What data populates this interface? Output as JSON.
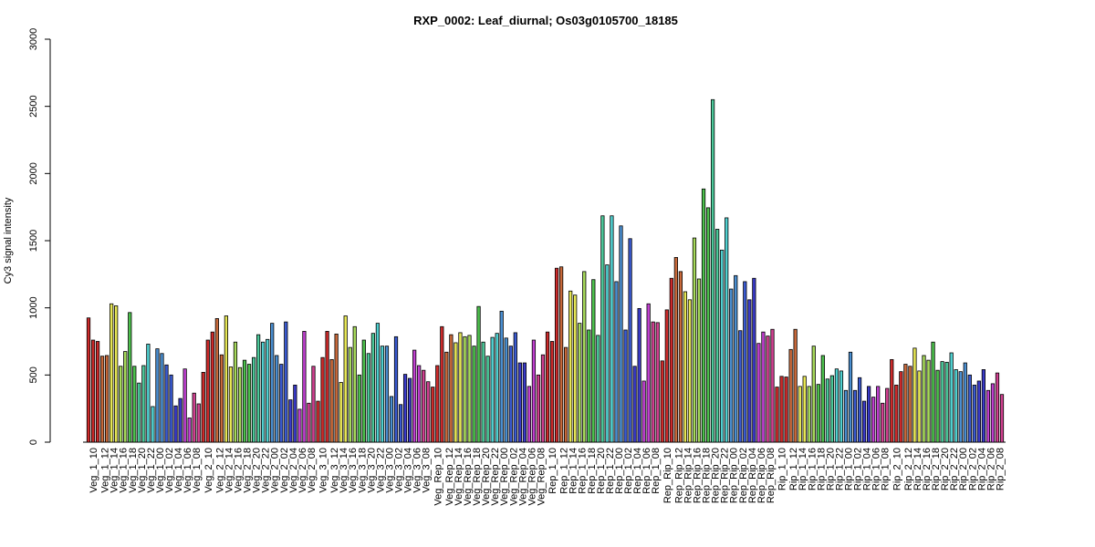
{
  "chart_data": {
    "type": "bar",
    "title": "RXP_0002: Leaf_diurnal; Os03g0105700_18185",
    "xlabel": "",
    "ylabel": "Cy3 signal intensity",
    "ylim": [
      0,
      3000
    ],
    "yticks": [
      0,
      500,
      1000,
      1500,
      2000,
      2500,
      3000
    ],
    "grid": false,
    "legend": "none",
    "groups": [
      {
        "label": "Veg_1_10",
        "color": "#cc2a2a",
        "values": [
          925,
          760,
          750
        ]
      },
      {
        "label": "Veg_1_12",
        "color": "#c8693a",
        "values": [
          640,
          645
        ]
      },
      {
        "label": "Veg_1_14",
        "color": "#e6e654",
        "values": [
          1030,
          1015
        ]
      },
      {
        "label": "Veg_1_16",
        "color": "#a6d95a",
        "values": [
          565,
          675
        ]
      },
      {
        "label": "Veg_1_18",
        "color": "#4cc04c",
        "values": [
          965,
          565
        ]
      },
      {
        "label": "Veg_1_20",
        "color": "#4cc89a",
        "values": [
          440,
          570
        ]
      },
      {
        "label": "Veg_1_22",
        "color": "#50d0d0",
        "values": [
          730,
          265
        ]
      },
      {
        "label": "Veg_1_00",
        "color": "#4a8ed0",
        "values": [
          695,
          660
        ]
      },
      {
        "label": "Veg_1_02",
        "color": "#3a5ad0",
        "values": [
          575,
          500
        ]
      },
      {
        "label": "Veg_1_04",
        "color": "#3a3ac8",
        "values": [
          270,
          325
        ]
      },
      {
        "label": "Veg_1_06",
        "color": "#c040d0",
        "values": [
          545,
          180
        ]
      },
      {
        "label": "Veg_1_08",
        "color": "#d04090",
        "values": [
          365,
          285
        ]
      },
      {
        "label": "Veg_2_10",
        "color": "#cc2a2a",
        "values": [
          520,
          760,
          820
        ]
      },
      {
        "label": "Veg_2_12",
        "color": "#c8693a",
        "values": [
          920,
          650
        ]
      },
      {
        "label": "Veg_2_14",
        "color": "#e6e654",
        "values": [
          940,
          560
        ]
      },
      {
        "label": "Veg_2_16",
        "color": "#a6d95a",
        "values": [
          745,
          555
        ]
      },
      {
        "label": "Veg_2_18",
        "color": "#4cc04c",
        "values": [
          610,
          580
        ]
      },
      {
        "label": "Veg_2_20",
        "color": "#4cc89a",
        "values": [
          630,
          800
        ]
      },
      {
        "label": "Veg_2_22",
        "color": "#50d0d0",
        "values": [
          745,
          765
        ]
      },
      {
        "label": "Veg_2_00",
        "color": "#4a8ed0",
        "values": [
          885,
          645
        ]
      },
      {
        "label": "Veg_2_02",
        "color": "#3a5ad0",
        "values": [
          580,
          895
        ]
      },
      {
        "label": "Veg_2_04",
        "color": "#3a3ac8",
        "values": [
          315,
          425
        ]
      },
      {
        "label": "Veg_2_06",
        "color": "#c040d0",
        "values": [
          245,
          825
        ]
      },
      {
        "label": "Veg_2_08",
        "color": "#d04090",
        "values": [
          290,
          565
        ]
      },
      {
        "label": "Veg_3_10",
        "color": "#cc2a2a",
        "values": [
          305,
          630,
          825
        ]
      },
      {
        "label": "Veg_3_12",
        "color": "#c8693a",
        "values": [
          615,
          805
        ]
      },
      {
        "label": "Veg_3_14",
        "color": "#e6e654",
        "values": [
          445,
          940
        ]
      },
      {
        "label": "Veg_3_16",
        "color": "#a6d95a",
        "values": [
          705,
          860
        ]
      },
      {
        "label": "Veg_3_18",
        "color": "#4cc04c",
        "values": [
          500,
          760
        ]
      },
      {
        "label": "Veg_3_20",
        "color": "#4cc89a",
        "values": [
          660,
          810
        ]
      },
      {
        "label": "Veg_3_22",
        "color": "#50d0d0",
        "values": [
          885,
          715
        ]
      },
      {
        "label": "Veg_3_00",
        "color": "#4a8ed0",
        "values": [
          715,
          340
        ]
      },
      {
        "label": "Veg_3_02",
        "color": "#3a5ad0",
        "values": [
          785,
          280
        ]
      },
      {
        "label": "Veg_3_04",
        "color": "#3a3ac8",
        "values": [
          505,
          475
        ]
      },
      {
        "label": "Veg_3_06",
        "color": "#c040d0",
        "values": [
          685,
          570
        ]
      },
      {
        "label": "Veg_3_08",
        "color": "#d04090",
        "values": [
          535,
          450
        ]
      },
      {
        "label": "Veg_Rep_10",
        "color": "#cc2a2a",
        "values": [
          410,
          570,
          860
        ]
      },
      {
        "label": "Veg_Rep_12",
        "color": "#c8693a",
        "values": [
          670,
          800
        ]
      },
      {
        "label": "Veg_Rep_14",
        "color": "#e6e654",
        "values": [
          740,
          815
        ]
      },
      {
        "label": "Veg_Rep_16",
        "color": "#a6d95a",
        "values": [
          785,
          795
        ]
      },
      {
        "label": "Veg_Rep_18",
        "color": "#4cc04c",
        "values": [
          715,
          1010
        ]
      },
      {
        "label": "Veg_Rep_20",
        "color": "#4cc89a",
        "values": [
          745,
          640
        ]
      },
      {
        "label": "Veg_Rep_22",
        "color": "#50d0d0",
        "values": [
          780,
          810
        ]
      },
      {
        "label": "Veg_Rep_00",
        "color": "#4a8ed0",
        "values": [
          975,
          775
        ]
      },
      {
        "label": "Veg_Rep_02",
        "color": "#3a5ad0",
        "values": [
          715,
          815
        ]
      },
      {
        "label": "Veg_Rep_04",
        "color": "#3a3ac8",
        "values": [
          590,
          590
        ]
      },
      {
        "label": "Veg_Rep_06",
        "color": "#c040d0",
        "values": [
          415,
          760
        ]
      },
      {
        "label": "Veg_Rep_08",
        "color": "#d04090",
        "values": [
          500,
          650
        ]
      },
      {
        "label": "Rep_1_10",
        "color": "#cc2a2a",
        "values": [
          820,
          750,
          1295
        ]
      },
      {
        "label": "Rep_1_12",
        "color": "#c8693a",
        "values": [
          1305,
          705
        ]
      },
      {
        "label": "Rep_1_14",
        "color": "#e6e654",
        "values": [
          1125,
          1095
        ]
      },
      {
        "label": "Rep_1_16",
        "color": "#a6d95a",
        "values": [
          885,
          1270
        ]
      },
      {
        "label": "Rep_1_18",
        "color": "#4cc04c",
        "values": [
          835,
          1210
        ]
      },
      {
        "label": "Rep_1_20",
        "color": "#4cc89a",
        "values": [
          795,
          1685
        ]
      },
      {
        "label": "Rep_1_22",
        "color": "#50d0d0",
        "values": [
          1320,
          1685
        ]
      },
      {
        "label": "Rep_1_00",
        "color": "#4a8ed0",
        "values": [
          1195,
          1610
        ]
      },
      {
        "label": "Rep_1_02",
        "color": "#3a5ad0",
        "values": [
          835,
          1515
        ]
      },
      {
        "label": "Rep_1_04",
        "color": "#3a3ac8",
        "values": [
          565,
          995
        ]
      },
      {
        "label": "Rep_1_06",
        "color": "#c040d0",
        "values": [
          455,
          1030
        ]
      },
      {
        "label": "Rep_1_08",
        "color": "#d04090",
        "values": [
          895,
          890
        ]
      },
      {
        "label": "Rep_Rip_10",
        "color": "#cc2a2a",
        "values": [
          605,
          985,
          1220
        ]
      },
      {
        "label": "Rep_Rip_12",
        "color": "#c8693a",
        "values": [
          1375,
          1270
        ]
      },
      {
        "label": "Rep_Rip_14",
        "color": "#e6e654",
        "values": [
          1120,
          1060
        ]
      },
      {
        "label": "Rep_Rip_16",
        "color": "#a6d95a",
        "values": [
          1520,
          1215
        ]
      },
      {
        "label": "Rep_Rip_18",
        "color": "#4cc04c",
        "values": [
          1885,
          1745
        ]
      },
      {
        "label": "Rep_Rip_20",
        "color": "#4cc89a",
        "values": [
          2550,
          1585
        ]
      },
      {
        "label": "Rep_Rip_22",
        "color": "#50d0d0",
        "values": [
          1430,
          1670
        ]
      },
      {
        "label": "Rep_Rip_00",
        "color": "#4a8ed0",
        "values": [
          1140,
          1240
        ]
      },
      {
        "label": "Rep_Rip_02",
        "color": "#3a5ad0",
        "values": [
          830,
          1195
        ]
      },
      {
        "label": "Rep_Rip_04",
        "color": "#3a3ac8",
        "values": [
          1060,
          1220
        ]
      },
      {
        "label": "Rep_Rip_06",
        "color": "#c040d0",
        "values": [
          735,
          820
        ]
      },
      {
        "label": "Rep_Rip_08",
        "color": "#d04090",
        "values": [
          790,
          840
        ]
      },
      {
        "label": "Rip_1_10",
        "color": "#cc2a2a",
        "values": [
          410,
          490,
          485
        ]
      },
      {
        "label": "Rip_1_12",
        "color": "#c8693a",
        "values": [
          690,
          840
        ]
      },
      {
        "label": "Rip_1_14",
        "color": "#e6e654",
        "values": [
          415,
          490
        ]
      },
      {
        "label": "Rip_1_16",
        "color": "#a6d95a",
        "values": [
          415,
          715
        ]
      },
      {
        "label": "Rip_1_18",
        "color": "#4cc04c",
        "values": [
          430,
          645
        ]
      },
      {
        "label": "Rip_1_20",
        "color": "#4cc89a",
        "values": [
          470,
          495
        ]
      },
      {
        "label": "Rip_1_22",
        "color": "#50d0d0",
        "values": [
          545,
          530
        ]
      },
      {
        "label": "Rip_1_00",
        "color": "#4a8ed0",
        "values": [
          385,
          670
        ]
      },
      {
        "label": "Rip_1_02",
        "color": "#3a5ad0",
        "values": [
          385,
          480
        ]
      },
      {
        "label": "Rip_1_04",
        "color": "#3a3ac8",
        "values": [
          305,
          415
        ]
      },
      {
        "label": "Rip_1_06",
        "color": "#c040d0",
        "values": [
          335,
          415
        ]
      },
      {
        "label": "Rip_1_08",
        "color": "#d04090",
        "values": [
          290,
          400
        ]
      },
      {
        "label": "Rip_2_10",
        "color": "#cc2a2a",
        "values": [
          615,
          425,
          525
        ]
      },
      {
        "label": "Rip_2_12",
        "color": "#c8693a",
        "values": [
          580,
          565
        ]
      },
      {
        "label": "Rip_2_14",
        "color": "#e6e654",
        "values": [
          700,
          530
        ]
      },
      {
        "label": "Rip_2_16",
        "color": "#a6d95a",
        "values": [
          645,
          610
        ]
      },
      {
        "label": "Rip_2_18",
        "color": "#4cc04c",
        "values": [
          745,
          535
        ]
      },
      {
        "label": "Rip_2_20",
        "color": "#4cc89a",
        "values": [
          600,
          595
        ]
      },
      {
        "label": "Rip_2_22",
        "color": "#50d0d0",
        "values": [
          665,
          540
        ]
      },
      {
        "label": "Rip_2_00",
        "color": "#4a8ed0",
        "values": [
          525,
          590
        ]
      },
      {
        "label": "Rip_2_02",
        "color": "#3a5ad0",
        "values": [
          500,
          425
        ]
      },
      {
        "label": "Rip_2_04",
        "color": "#3a3ac8",
        "values": [
          455,
          540
        ]
      },
      {
        "label": "Rip_2_06",
        "color": "#c040d0",
        "values": [
          385,
          435
        ]
      },
      {
        "label": "Rip_2_08",
        "color": "#d04090",
        "values": [
          515,
          355
        ]
      }
    ]
  }
}
